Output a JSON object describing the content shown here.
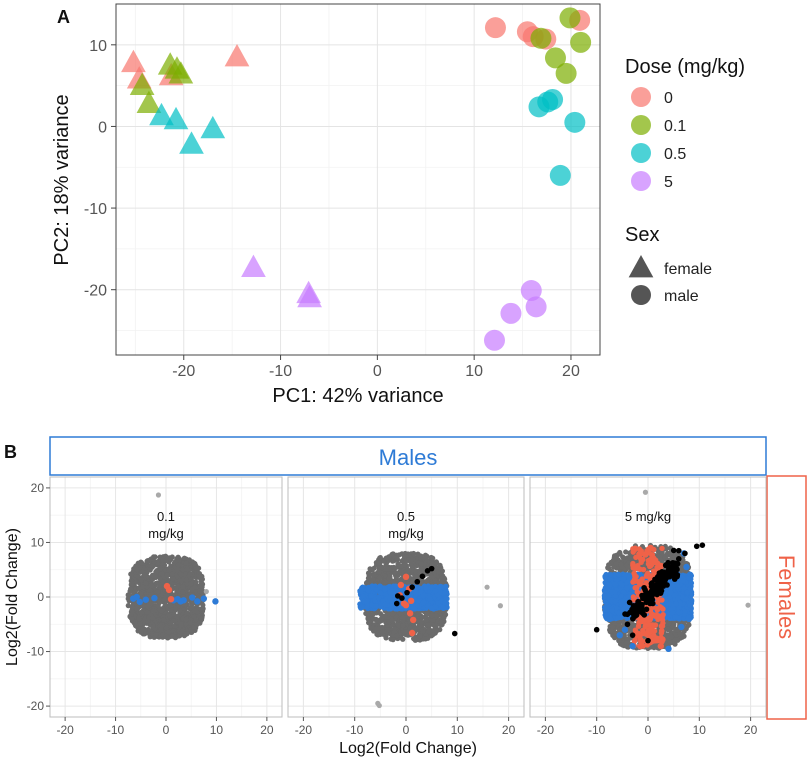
{
  "panel_a_label": "A",
  "panel_b_label": "B",
  "chart_data": [
    {
      "type": "scatter",
      "panel": "A",
      "xlabel": "PC1: 42% variance",
      "ylabel": "PC2: 18% variance",
      "xlim": [
        -27,
        23
      ],
      "ylim": [
        -28,
        15
      ],
      "xticks": [
        -20,
        -10,
        0,
        10,
        20
      ],
      "yticks": [
        -20,
        -10,
        0,
        10
      ],
      "xtick_labels": [
        "-20",
        "-10",
        "0",
        "10",
        "20"
      ],
      "ytick_labels": [
        "-20",
        "-10",
        "0",
        "10"
      ],
      "legend": {
        "dose_title": "Dose (mg/kg)",
        "dose_items": [
          {
            "label": "0",
            "color": "#F8766D"
          },
          {
            "label": "0.1",
            "color": "#7CAE00"
          },
          {
            "label": "0.5",
            "color": "#00BFC4"
          },
          {
            "label": "5",
            "color": "#C77CFF"
          }
        ],
        "sex_title": "Sex",
        "sex_items": [
          {
            "label": "female",
            "shape": "triangle"
          },
          {
            "label": "male",
            "shape": "circle"
          }
        ]
      },
      "points": [
        {
          "x": -25.2,
          "y": 7.8,
          "dose": "0",
          "sex": "female"
        },
        {
          "x": -24.6,
          "y": 5.8,
          "dose": "0",
          "sex": "female"
        },
        {
          "x": -21.3,
          "y": 6.2,
          "dose": "0",
          "sex": "female"
        },
        {
          "x": -14.5,
          "y": 8.5,
          "dose": "0",
          "sex": "female"
        },
        {
          "x": -24.3,
          "y": 5.0,
          "dose": "0.1",
          "sex": "female"
        },
        {
          "x": -23.6,
          "y": 2.8,
          "dose": "0.1",
          "sex": "female"
        },
        {
          "x": -21.4,
          "y": 7.5,
          "dose": "0.1",
          "sex": "female"
        },
        {
          "x": -20.7,
          "y": 7.0,
          "dose": "0.1",
          "sex": "female"
        },
        {
          "x": -20.3,
          "y": 6.4,
          "dose": "0.1",
          "sex": "female"
        },
        {
          "x": -22.3,
          "y": 1.3,
          "dose": "0.5",
          "sex": "female"
        },
        {
          "x": -20.8,
          "y": 0.8,
          "dose": "0.5",
          "sex": "female"
        },
        {
          "x": -19.2,
          "y": -2.2,
          "dose": "0.5",
          "sex": "female"
        },
        {
          "x": -17.0,
          "y": -0.3,
          "dose": "0.5",
          "sex": "female"
        },
        {
          "x": -12.8,
          "y": -17.3,
          "dose": "5",
          "sex": "female"
        },
        {
          "x": -7.1,
          "y": -20.5,
          "dose": "5",
          "sex": "female"
        },
        {
          "x": -7.0,
          "y": -21.0,
          "dose": "5",
          "sex": "female"
        },
        {
          "x": 12.2,
          "y": 12.1,
          "dose": "0",
          "sex": "male"
        },
        {
          "x": 15.5,
          "y": 11.6,
          "dose": "0",
          "sex": "male"
        },
        {
          "x": 16.1,
          "y": 11.0,
          "dose": "0",
          "sex": "male"
        },
        {
          "x": 17.4,
          "y": 10.7,
          "dose": "0",
          "sex": "male"
        },
        {
          "x": 20.9,
          "y": 13.0,
          "dose": "0",
          "sex": "male"
        },
        {
          "x": 16.9,
          "y": 10.8,
          "dose": "0.1",
          "sex": "male"
        },
        {
          "x": 18.4,
          "y": 8.4,
          "dose": "0.1",
          "sex": "male"
        },
        {
          "x": 19.5,
          "y": 6.5,
          "dose": "0.1",
          "sex": "male"
        },
        {
          "x": 19.9,
          "y": 13.3,
          "dose": "0.1",
          "sex": "male"
        },
        {
          "x": 21.0,
          "y": 10.3,
          "dose": "0.1",
          "sex": "male"
        },
        {
          "x": 16.7,
          "y": 2.4,
          "dose": "0.5",
          "sex": "male"
        },
        {
          "x": 17.6,
          "y": 3.0,
          "dose": "0.5",
          "sex": "male"
        },
        {
          "x": 18.1,
          "y": 3.3,
          "dose": "0.5",
          "sex": "male"
        },
        {
          "x": 20.4,
          "y": 0.5,
          "dose": "0.5",
          "sex": "male"
        },
        {
          "x": 18.9,
          "y": -6.0,
          "dose": "0.5",
          "sex": "male"
        },
        {
          "x": 15.9,
          "y": -20.1,
          "dose": "5",
          "sex": "male"
        },
        {
          "x": 16.4,
          "y": -22.1,
          "dose": "5",
          "sex": "male"
        },
        {
          "x": 13.8,
          "y": -22.9,
          "dose": "5",
          "sex": "male"
        },
        {
          "x": 12.1,
          "y": -26.2,
          "dose": "5",
          "sex": "male"
        }
      ]
    },
    {
      "type": "scatter",
      "panel": "B",
      "top_strip": "Males",
      "side_strip": "Females",
      "xlabel": "Log2(Fold Change)",
      "ylabel": "Log2(Fold Change)",
      "xlim": [
        -23,
        23
      ],
      "ylim": [
        -22,
        22
      ],
      "xticks": [
        -20,
        -10,
        0,
        10,
        20
      ],
      "yticks": [
        -20,
        -10,
        0,
        10,
        20
      ],
      "xtick_labels": [
        "-20",
        "-10",
        "0",
        "10",
        "20"
      ],
      "ytick_labels": [
        "-20",
        "-10",
        "0",
        "10",
        "20"
      ],
      "colors": {
        "nonsig": "#6b6b6b",
        "male_only": "#2e7bd6",
        "female_only": "#ef6248",
        "both": "#000000",
        "light": "#a9a9a9"
      },
      "facets": [
        {
          "label": "0.1\nmg/kg",
          "label_lines": [
            "0.1",
            "mg/kg"
          ],
          "cloud_halfwidth": [
            7.5,
            7.5
          ],
          "blue_band": {
            "x": [
              -7,
              7
            ],
            "y": [
              -1.5,
              0.8
            ],
            "n": 0
          },
          "outliers": [
            {
              "x": -1.5,
              "y": 18.7,
              "c": "light"
            },
            {
              "x": 8.0,
              "y": 1.0,
              "c": "light"
            }
          ],
          "blue_points": [
            [
              -6.5,
              -0.3
            ],
            [
              -5.8,
              0.0
            ],
            [
              -4.0,
              -0.5
            ],
            [
              -2.3,
              -0.2
            ],
            [
              1.5,
              -0.6
            ],
            [
              2.3,
              -0.4
            ],
            [
              3.5,
              -0.6
            ],
            [
              5.2,
              -0.1
            ],
            [
              6.2,
              -0.8
            ],
            [
              7.5,
              -0.3
            ],
            [
              9.8,
              -0.8
            ],
            [
              -5.2,
              -0.9
            ],
            [
              2.9,
              -0.8
            ]
          ],
          "red_points": [
            [
              0.2,
              2.0
            ],
            [
              0.6,
              1.3
            ],
            [
              1.0,
              -0.4
            ]
          ],
          "black_points": []
        },
        {
          "label": "0.5\nmg/kg",
          "label_lines": [
            "0.5",
            "mg/kg"
          ],
          "cloud_halfwidth": [
            8,
            8
          ],
          "blue_band": {
            "x": [
              -9,
              8
            ],
            "y": [
              -2.2,
              2.0
            ],
            "n": 700
          },
          "outliers": [
            {
              "x": 15.8,
              "y": 1.8,
              "c": "light"
            },
            {
              "x": 18.4,
              "y": -1.6,
              "c": "light"
            },
            {
              "x": -5.5,
              "y": -19.5,
              "c": "light"
            },
            {
              "x": -5.2,
              "y": -19.9,
              "c": "light"
            }
          ],
          "red_points": [
            [
              -1.0,
              2.2
            ],
            [
              0.0,
              3.7
            ],
            [
              0.6,
              1.5
            ],
            [
              1.0,
              -0.7
            ],
            [
              -1.2,
              0.3
            ],
            [
              0.0,
              -1.5
            ],
            [
              1.4,
              -4.2
            ],
            [
              1.2,
              -6.6
            ],
            [
              -0.4,
              -1.2
            ],
            [
              0.8,
              -3.0
            ]
          ],
          "black_points": [
            [
              -1.8,
              -1.2
            ],
            [
              -0.8,
              -0.2
            ],
            [
              0.2,
              0.8
            ],
            [
              1.2,
              1.8
            ],
            [
              2.2,
              2.8
            ],
            [
              3.2,
              3.8
            ],
            [
              4.2,
              4.8
            ],
            [
              5.0,
              5.2
            ],
            [
              -1.6,
              0.2
            ],
            [
              9.5,
              -6.7
            ]
          ],
          "blue_points": []
        },
        {
          "label": "5 mg/kg",
          "label_lines": [
            "5 mg/kg"
          ],
          "cloud_halfwidth": [
            8.5,
            9.5
          ],
          "blue_band": {
            "x": [
              -8.5,
              8.5
            ],
            "y": [
              -4.0,
              4.2
            ],
            "n": 1600
          },
          "red_band": {
            "x": [
              -3,
              3
            ],
            "y": [
              -9,
              9
            ],
            "n": 250
          },
          "outliers": [
            {
              "x": -0.5,
              "y": 19.2,
              "c": "light"
            },
            {
              "x": 19.5,
              "y": -1.5,
              "c": "light"
            }
          ],
          "blue_points": [
            [
              -5.5,
              -7.0
            ],
            [
              -3.0,
              -9.0
            ],
            [
              -4.5,
              -6.0
            ],
            [
              7.0,
              8.0
            ],
            [
              7.5,
              5.5
            ],
            [
              6.5,
              -5.5
            ],
            [
              8.0,
              -4.0
            ],
            [
              -7.5,
              -4.0
            ],
            [
              -8.0,
              -2.0
            ],
            [
              4.0,
              -9.5
            ]
          ],
          "red_points": [
            [
              -0.5,
              7.8
            ],
            [
              0.5,
              9.0
            ],
            [
              1.0,
              -8.0
            ],
            [
              -1.5,
              -9.0
            ],
            [
              2.5,
              -9.0
            ]
          ],
          "black_points": [
            [
              -10.0,
              -6.0
            ],
            [
              -3.0,
              -7.0
            ],
            [
              0.0,
              -8.0
            ],
            [
              5.2,
              6.2
            ],
            [
              7.2,
              8.0
            ],
            [
              9.5,
              9.3
            ],
            [
              10.6,
              9.5
            ],
            [
              -1.0,
              -3.0
            ],
            [
              3.0,
              2.0
            ],
            [
              4.0,
              5.0
            ],
            [
              6.0,
              7.0
            ],
            [
              -2.0,
              -2.0
            ],
            [
              1.0,
              1.0
            ],
            [
              2.0,
              3.5
            ],
            [
              6.0,
              8.5
            ],
            [
              -4.0,
              -5.0
            ],
            [
              5.5,
              4.0
            ]
          ]
        }
      ]
    }
  ]
}
